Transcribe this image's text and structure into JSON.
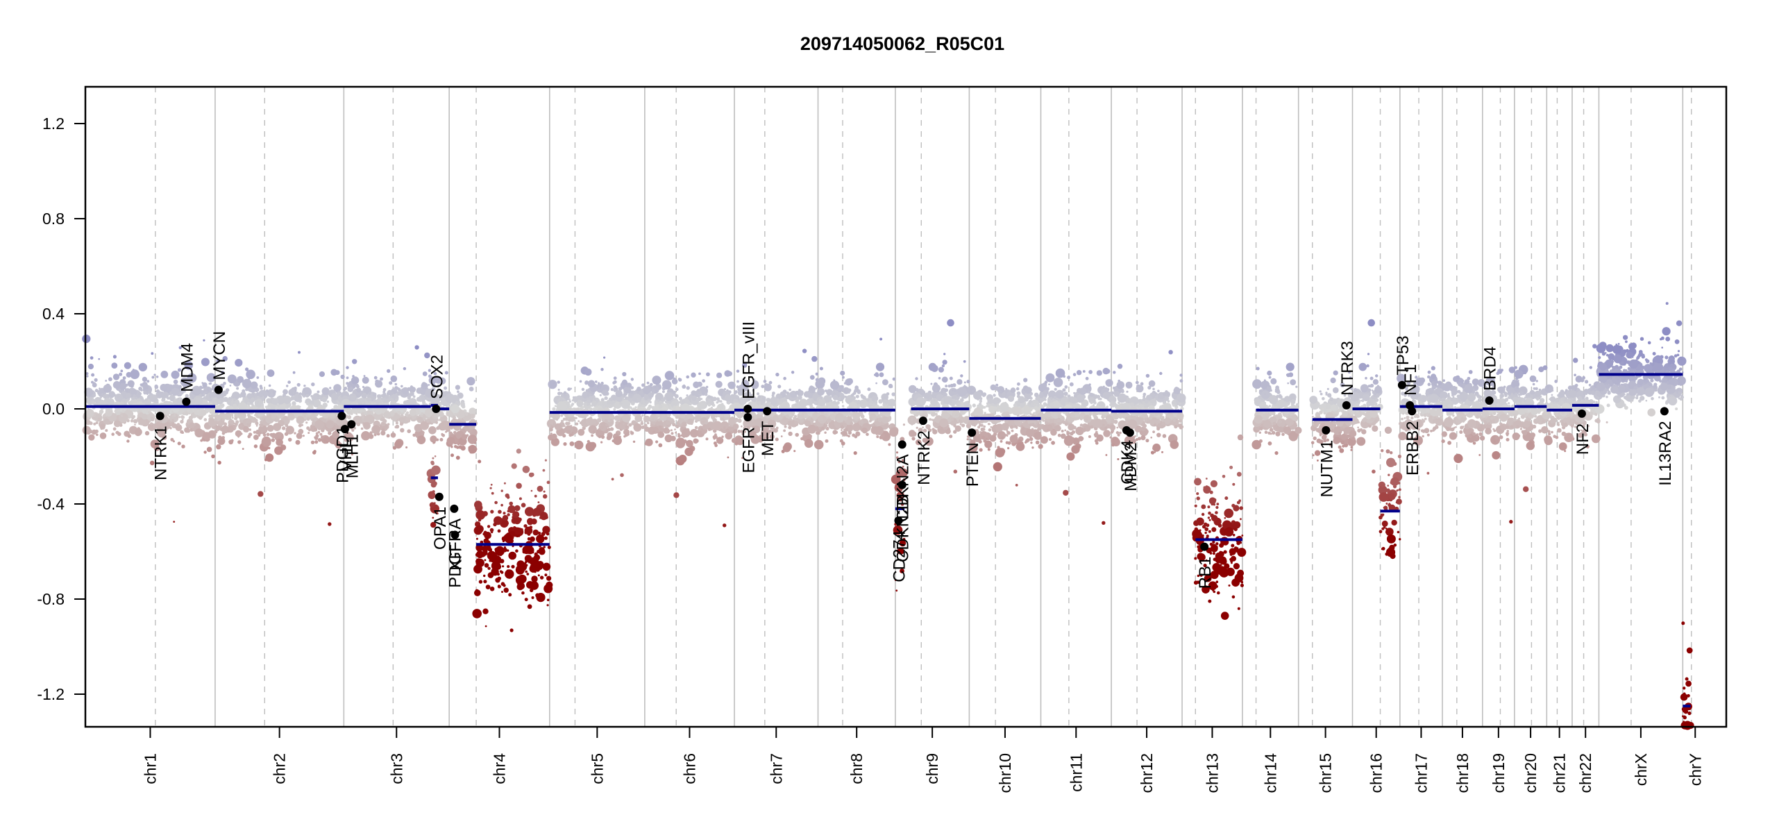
{
  "chart_data": {
    "type": "scatter",
    "title": "209714050062_R05C01",
    "xlabel": "",
    "ylabel": "",
    "ylim": [
      -1.35,
      1.35
    ],
    "yticks": [
      1.2,
      0.8,
      0.4,
      0.0,
      -0.4,
      -0.8,
      -1.2
    ],
    "ytick_labels": [
      "1.2",
      "0.8",
      "0.4",
      "0.0",
      "-0.4",
      "-0.8",
      "-1.2"
    ],
    "grid": false,
    "legend": "none",
    "colors": {
      "gain": "#8d8dc4",
      "neutral": "#d6d6d6",
      "loss_mild": "#b98585",
      "loss_deep": "#8b0000",
      "segment": "#00008b",
      "gene_point": "#000000",
      "chrom_boundary": "#bebebe",
      "centromere": "#bebebe"
    },
    "chromosomes": [
      {
        "name": "chr1",
        "label": "chr1",
        "start": 0.0,
        "end": 0.0495,
        "centromere": 0.0267
      },
      {
        "name": "chr2",
        "label": "chr2",
        "start": 0.0495,
        "end": 0.0986,
        "centromere": 0.0684
      },
      {
        "name": "chr3",
        "label": "chr3",
        "start": 0.0986,
        "end": 0.1388,
        "centromere": 0.1174
      },
      {
        "name": "chr4",
        "label": "chr4",
        "start": 0.1388,
        "end": 0.1771,
        "centromere": 0.1491
      },
      {
        "name": "chr5",
        "label": "chr5",
        "start": 0.1771,
        "end": 0.2134,
        "centromere": 0.1868
      },
      {
        "name": "chr6",
        "label": "chr6",
        "start": 0.2134,
        "end": 0.2476,
        "centromere": 0.2254
      },
      {
        "name": "chr7",
        "label": "chr7",
        "start": 0.2476,
        "end": 0.2795,
        "centromere": 0.2592
      },
      {
        "name": "chr8",
        "label": "chr8",
        "start": 0.2795,
        "end": 0.309,
        "centromere": 0.2889
      },
      {
        "name": "chr9",
        "label": "chr9",
        "start": 0.309,
        "end": 0.3372,
        "centromere": 0.3189
      },
      {
        "name": "chr10",
        "label": "chr10",
        "start": 0.3372,
        "end": 0.3645,
        "centromere": 0.3472
      },
      {
        "name": "chr11",
        "label": "chr11",
        "start": 0.3645,
        "end": 0.3914,
        "centromere": 0.3752
      },
      {
        "name": "chr12",
        "label": "chr12",
        "start": 0.3914,
        "end": 0.4184,
        "centromere": 0.4012
      },
      {
        "name": "chr13",
        "label": "chr13",
        "start": 0.4184,
        "end": 0.4414,
        "centromere": 0.4235
      },
      {
        "name": "chr14",
        "label": "chr14",
        "start": 0.4414,
        "end": 0.4628,
        "centromere": 0.4466
      },
      {
        "name": "chr15",
        "label": "chr15",
        "start": 0.4628,
        "end": 0.4834,
        "centromere": 0.4681
      },
      {
        "name": "chr16",
        "label": "chr16",
        "start": 0.4834,
        "end": 0.5015,
        "centromere": 0.494
      },
      {
        "name": "chr17",
        "label": "chr17",
        "start": 0.5015,
        "end": 0.5177,
        "centromere": 0.5087
      },
      {
        "name": "chr18",
        "label": "chr18",
        "start": 0.5177,
        "end": 0.533,
        "centromere": 0.5232
      },
      {
        "name": "chr19",
        "label": "chr19",
        "start": 0.533,
        "end": 0.5452,
        "centromere": 0.5398
      },
      {
        "name": "chr20",
        "label": "chr20",
        "start": 0.5452,
        "end": 0.5575,
        "centromere": 0.5517
      },
      {
        "name": "chr21",
        "label": "chr21",
        "start": 0.5575,
        "end": 0.5672,
        "centromere": 0.5615
      },
      {
        "name": "chr22",
        "label": "chr22",
        "start": 0.5672,
        "end": 0.5774,
        "centromere": 0.5716
      },
      {
        "name": "chrX",
        "label": "chrX",
        "start": 0.5774,
        "end": 0.6094,
        "centromere": 0.5897
      },
      {
        "name": "chrY",
        "label": "chrY",
        "start": 0.6094,
        "end": 0.6189,
        "centromere": 0.6127
      }
    ],
    "x_axis_span": [
      0.0,
      0.626
    ],
    "segments": [
      {
        "chrom": "chr1",
        "x0": 0.0,
        "x1": 0.0495,
        "mean": 0.01
      },
      {
        "chrom": "chr2",
        "x0": 0.0495,
        "x1": 0.0986,
        "mean": -0.01
      },
      {
        "chrom": "chr3",
        "x0": 0.0986,
        "x1": 0.1318,
        "mean": 0.01
      },
      {
        "chrom": "chr3",
        "x0": 0.1318,
        "x1": 0.1345,
        "mean": 0.015
      },
      {
        "chrom": "chr3",
        "x0": 0.1345,
        "x1": 0.1388,
        "mean": 0.0
      },
      {
        "chrom": "chr3",
        "x0": 0.1318,
        "x1": 0.1345,
        "mean": -0.29
      },
      {
        "chrom": "chr3",
        "x0": 0.1388,
        "x1": 0.1491,
        "mean": -0.065
      },
      {
        "chrom": "chr4",
        "x0": 0.1491,
        "x1": 0.1771,
        "mean": -0.57
      },
      {
        "chrom": "chr5",
        "x0": 0.1771,
        "x1": 0.2134,
        "mean": -0.015
      },
      {
        "chrom": "chr6",
        "x0": 0.2134,
        "x1": 0.2476,
        "mean": -0.015
      },
      {
        "chrom": "chr7",
        "x0": 0.2476,
        "x1": 0.2795,
        "mean": -0.005
      },
      {
        "chrom": "chr8",
        "x0": 0.2795,
        "x1": 0.309,
        "mean": -0.005
      },
      {
        "chrom": "chr9",
        "x0": 0.309,
        "x1": 0.3125,
        "mean": -0.42
      },
      {
        "chrom": "chr9",
        "x0": 0.315,
        "x1": 0.3372,
        "mean": 0.0
      },
      {
        "chrom": "chr10",
        "x0": 0.3372,
        "x1": 0.3645,
        "mean": -0.04
      },
      {
        "chrom": "chr11",
        "x0": 0.3645,
        "x1": 0.3914,
        "mean": -0.005
      },
      {
        "chrom": "chr12",
        "x0": 0.3914,
        "x1": 0.4184,
        "mean": -0.01
      },
      {
        "chrom": "chr13",
        "x0": 0.4235,
        "x1": 0.4414,
        "mean": -0.55
      },
      {
        "chrom": "chr14",
        "x0": 0.4466,
        "x1": 0.4628,
        "mean": -0.005
      },
      {
        "chrom": "chr15",
        "x0": 0.4681,
        "x1": 0.4834,
        "mean": -0.045
      },
      {
        "chrom": "chr16",
        "x0": 0.4834,
        "x1": 0.494,
        "mean": 0.0
      },
      {
        "chrom": "chr16",
        "x0": 0.494,
        "x1": 0.5015,
        "mean": -0.43
      },
      {
        "chrom": "chr17",
        "x0": 0.5015,
        "x1": 0.5177,
        "mean": 0.01
      },
      {
        "chrom": "chr18",
        "x0": 0.5177,
        "x1": 0.533,
        "mean": -0.005
      },
      {
        "chrom": "chr19",
        "x0": 0.533,
        "x1": 0.5452,
        "mean": 0.0
      },
      {
        "chrom": "chr20",
        "x0": 0.5452,
        "x1": 0.5575,
        "mean": 0.01
      },
      {
        "chrom": "chr21",
        "x0": 0.5575,
        "x1": 0.5672,
        "mean": -0.005
      },
      {
        "chrom": "chr22",
        "x0": 0.5672,
        "x1": 0.5774,
        "mean": 0.015
      },
      {
        "chrom": "chrX",
        "x0": 0.5774,
        "x1": 0.6094,
        "mean": 0.145
      },
      {
        "chrom": "chrY",
        "x0": 0.6094,
        "x1": 0.6124,
        "mean": -1.25
      }
    ],
    "genes": [
      {
        "name": "NTRK1",
        "x": 0.0285,
        "y": -0.03,
        "label_side": "below"
      },
      {
        "name": "MDM4",
        "x": 0.0385,
        "y": 0.03,
        "label_side": "above"
      },
      {
        "name": "MYCN",
        "x": 0.0508,
        "y": 0.08,
        "label_side": "above"
      },
      {
        "name": "PDGD1",
        "x": 0.0978,
        "y": -0.03,
        "label_side": "below"
      },
      {
        "name": "VHL",
        "x": 0.099,
        "y": -0.085,
        "label_side": "below"
      },
      {
        "name": "MLH1",
        "x": 0.1015,
        "y": -0.065,
        "label_side": "below"
      },
      {
        "name": "SOX2",
        "x": 0.1338,
        "y": 0.0,
        "label_side": "above"
      },
      {
        "name": "OPA1",
        "x": 0.135,
        "y": -0.37,
        "label_side": "below"
      },
      {
        "name": "PDGFRA",
        "x": 0.1407,
        "y": -0.42,
        "label_side": "below"
      },
      {
        "name": "KIT",
        "x": 0.141,
        "y": -0.53,
        "label_side": "below"
      },
      {
        "name": "EGFR_vIII",
        "x": 0.2527,
        "y": 0.0,
        "label_side": "above"
      },
      {
        "name": "EGFR",
        "x": 0.2527,
        "y": -0.035,
        "label_side": "below"
      },
      {
        "name": "MET",
        "x": 0.2601,
        "y": -0.01,
        "label_side": "below"
      },
      {
        "name": "CDKN2A",
        "x": 0.3116,
        "y": -0.15,
        "label_side": "below"
      },
      {
        "name": "CDKN2B",
        "x": 0.3116,
        "y": -0.32,
        "label_side": "below"
      },
      {
        "name": "CD274",
        "x": 0.3102,
        "y": -0.47,
        "label_side": "below"
      },
      {
        "name": "NTRK2",
        "x": 0.3196,
        "y": -0.05,
        "label_side": "below"
      },
      {
        "name": "PTEN",
        "x": 0.3382,
        "y": -0.1,
        "label_side": "below"
      },
      {
        "name": "CDK4",
        "x": 0.3972,
        "y": -0.09,
        "label_side": "below"
      },
      {
        "name": "MDM2",
        "x": 0.3985,
        "y": -0.1,
        "label_side": "below"
      },
      {
        "name": "RB1",
        "x": 0.4269,
        "y": -0.58,
        "label_side": "below"
      },
      {
        "name": "NUTM1",
        "x": 0.4733,
        "y": -0.09,
        "label_side": "below"
      },
      {
        "name": "NTRK3",
        "x": 0.4811,
        "y": 0.015,
        "label_side": "above"
      },
      {
        "name": "TP53",
        "x": 0.5023,
        "y": 0.1,
        "label_side": "above"
      },
      {
        "name": "NF1",
        "x": 0.5053,
        "y": 0.015,
        "label_side": "above"
      },
      {
        "name": "ERBB2",
        "x": 0.5061,
        "y": -0.01,
        "label_side": "below"
      },
      {
        "name": "BRD4",
        "x": 0.5356,
        "y": 0.035,
        "label_side": "above"
      },
      {
        "name": "NF2",
        "x": 0.5709,
        "y": -0.02,
        "label_side": "below"
      },
      {
        "name": "IL13RA2",
        "x": 0.6024,
        "y": -0.01,
        "label_side": "below"
      }
    ]
  }
}
